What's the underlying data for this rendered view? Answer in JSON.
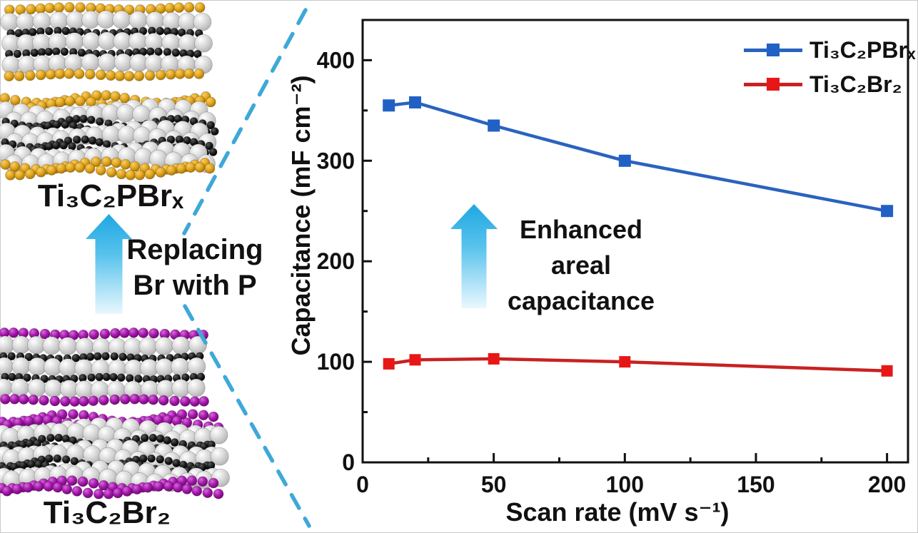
{
  "figure": {
    "left_panel": {
      "top_structure_label": "Ti₃C₂PBrₓ",
      "bottom_structure_label": "Ti₃C₂Br₂",
      "transform_text_line1": "Replacing",
      "transform_text_line2": "Br with P"
    },
    "annotation": {
      "line1": "Enhanced",
      "line2": "areal",
      "line3": "capacitance"
    },
    "colors": {
      "series_blue": "#2a63be",
      "series_blue_marker": "#2161c6",
      "series_red": "#c92121",
      "series_red_marker": "#e81717",
      "arrow_gradient_top": "#1fa7e2",
      "arrow_gradient_mid": "#56c2ec",
      "arrow_gradient_bottom": "#eaf8fe",
      "dashed_line": "#3ea8d8",
      "atom_gold": "#dfa11c",
      "atom_purple": "#a215a8",
      "atom_gray": "#d8d8d8",
      "atom_carbon": "#1a1a1a",
      "axis": "#111111",
      "text": "#111111"
    }
  },
  "chart_data": {
    "type": "line",
    "title": "",
    "xlabel": "Scan rate (mV s⁻¹)",
    "ylabel": "Capacitance (mF cm⁻²)",
    "x": [
      10,
      20,
      50,
      100,
      200
    ],
    "series": [
      {
        "name": "Ti₃C₂PBrₓ",
        "color": "#2a63be",
        "marker_color": "#2161c6",
        "marker_size": 17,
        "values": [
          355,
          358,
          335,
          300,
          250
        ]
      },
      {
        "name": "Ti₃C₂Br₂",
        "color": "#c92121",
        "marker_color": "#e81717",
        "marker_size": 16,
        "values": [
          98,
          102,
          103,
          100,
          91
        ]
      }
    ],
    "xlim": [
      0,
      208
    ],
    "ylim": [
      0,
      440
    ],
    "x_ticks": [
      0,
      50,
      100,
      150,
      200
    ],
    "y_ticks": [
      0,
      100,
      200,
      300,
      400
    ],
    "x_minor_step": 25,
    "y_minor_step": 50,
    "grid": false,
    "legend_position": "top-right"
  }
}
